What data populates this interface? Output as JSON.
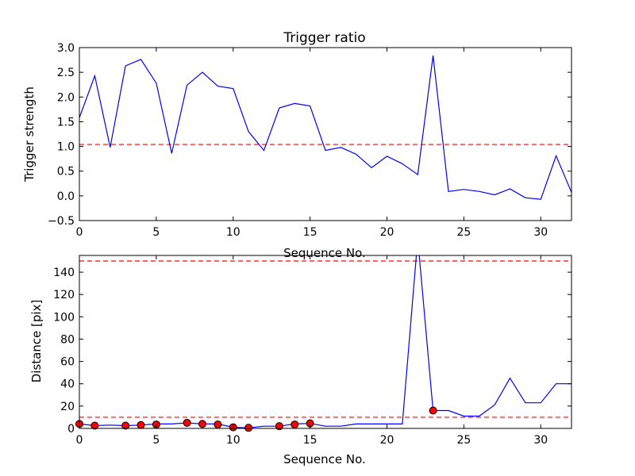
{
  "chart_data": [
    {
      "type": "line",
      "title": "Trigger ratio",
      "xlabel": "Sequence No.",
      "ylabel": "Trigger strength",
      "xlim": [
        0,
        32
      ],
      "ylim": [
        -0.5,
        3.0
      ],
      "xticks": [
        "0",
        "5",
        "10",
        "15",
        "20",
        "25",
        "30"
      ],
      "yticks": [
        "−0.5",
        "0.0",
        "0.5",
        "1.0",
        "1.5",
        "2.0",
        "2.5",
        "3.0"
      ],
      "grid": false,
      "series": [
        {
          "color": "#0000ff",
          "x": [
            0,
            1,
            2,
            3,
            4,
            5,
            6,
            7,
            8,
            9,
            10,
            11,
            12,
            13,
            14,
            15,
            16,
            17,
            18,
            19,
            20,
            21,
            22,
            23,
            24,
            25,
            26,
            27,
            28,
            29,
            30,
            31,
            32
          ],
          "y": [
            1.58,
            2.43,
            0.98,
            2.63,
            2.76,
            2.28,
            0.86,
            2.24,
            2.5,
            2.22,
            2.17,
            1.3,
            0.92,
            1.78,
            1.87,
            1.82,
            0.92,
            0.98,
            0.84,
            0.57,
            0.8,
            0.65,
            0.43,
            2.84,
            0.09,
            0.13,
            0.09,
            0.02,
            0.14,
            -0.04,
            -0.07,
            0.81,
            0.07
          ]
        }
      ],
      "thresholds": [
        {
          "y": 1.04,
          "color": "#ff0000",
          "style": "dashed"
        }
      ]
    },
    {
      "type": "line",
      "title": "",
      "xlabel": "Sequence No.",
      "ylabel": "Distance [pix]",
      "xlim": [
        0,
        32
      ],
      "ylim": [
        0,
        155
      ],
      "xticks": [
        "0",
        "5",
        "10",
        "15",
        "20",
        "25",
        "30"
      ],
      "yticks": [
        "0",
        "20",
        "40",
        "60",
        "80",
        "100",
        "120",
        "140"
      ],
      "grid": false,
      "series": [
        {
          "color": "#0000ff",
          "x": [
            0,
            1,
            2,
            3,
            4,
            5,
            6,
            7,
            8,
            9,
            10,
            11,
            12,
            13,
            14,
            15,
            16,
            17,
            18,
            19,
            20,
            21,
            22,
            23,
            24,
            25,
            26,
            27,
            28,
            29,
            30,
            31,
            32
          ],
          "y": [
            4,
            2.5,
            3,
            2.5,
            3,
            4,
            4,
            5,
            4,
            4,
            1,
            0.5,
            2,
            2,
            4,
            4.5,
            2,
            2,
            4,
            4,
            4,
            4,
            170,
            16,
            16,
            11,
            11,
            21,
            45,
            23,
            23,
            40,
            40
          ]
        },
        {
          "type": "scatter",
          "color": "#ff0000",
          "x": [
            0,
            1,
            3,
            4,
            5,
            7,
            8,
            9,
            10,
            11,
            13,
            14,
            15,
            23
          ],
          "y": [
            4,
            2.5,
            2.5,
            3,
            3.5,
            5,
            4,
            3.5,
            1,
            0.5,
            2,
            3.5,
            4.5,
            16
          ]
        }
      ],
      "thresholds": [
        {
          "y": 150,
          "color": "#ff0000",
          "style": "dashed"
        },
        {
          "y": 10,
          "color": "#ff0000",
          "style": "dashed"
        }
      ]
    }
  ]
}
